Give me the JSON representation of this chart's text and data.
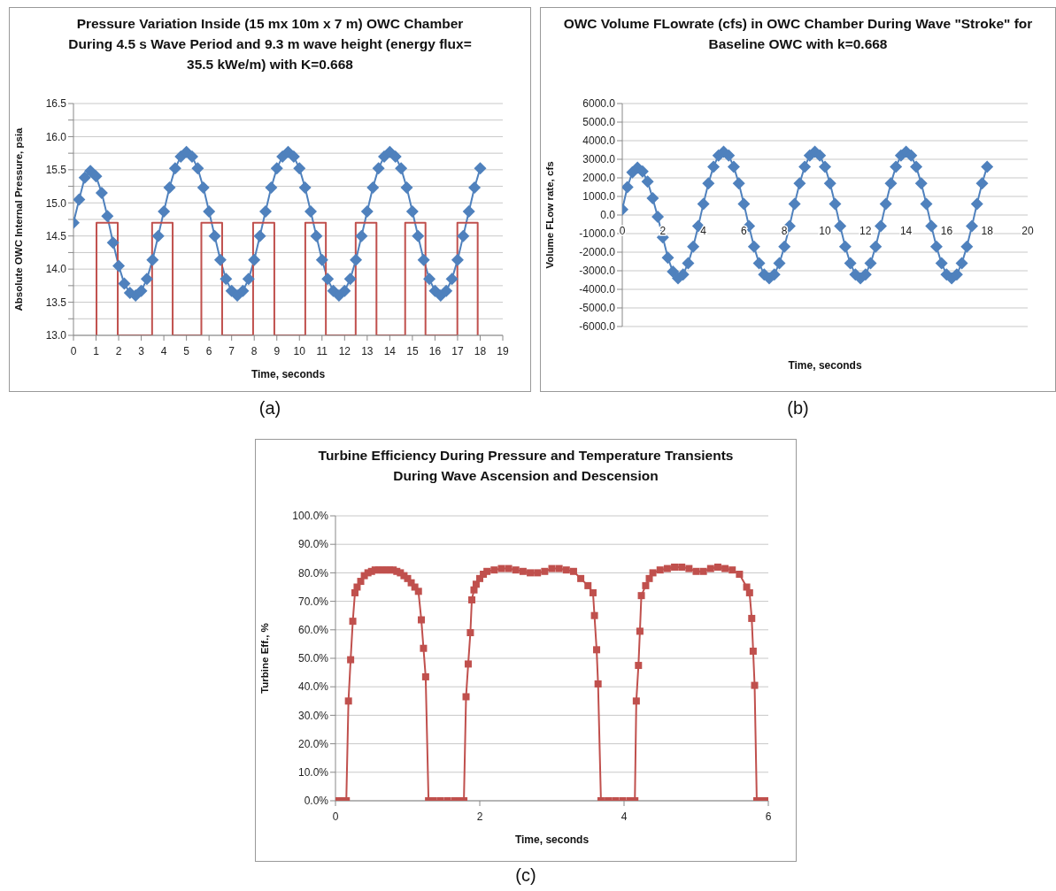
{
  "chart_data": [
    {
      "type": "line",
      "title": "Pressure Variation Inside (15 mx 10m x 7 m) OWC Chamber During 4.5 s Wave Period and 9.3 m wave height (energy flux= 35.5 kWe/m) with K=0.668",
      "xlabel": "Time, seconds",
      "ylabel": "Absolute OWC Internal Pressure, psia",
      "annotations": [
        "(a)"
      ],
      "marker": "diamond",
      "grid": "y",
      "xlim": [
        0,
        19
      ],
      "xticks": [
        0,
        1,
        2,
        3,
        4,
        5,
        6,
        7,
        8,
        9,
        10,
        11,
        12,
        13,
        14,
        15,
        16,
        17,
        18,
        19
      ],
      "ylim": [
        13,
        16.5
      ],
      "yticks": [
        {
          "value": 13,
          "label": "13.0"
        },
        {
          "value": 13.25,
          "label": null
        },
        {
          "value": 13.5,
          "label": "13.5"
        },
        {
          "value": 13.75,
          "label": null
        },
        {
          "value": 14,
          "label": "14.0"
        },
        {
          "value": 14.25,
          "label": null
        },
        {
          "value": 14.5,
          "label": "14.5"
        },
        {
          "value": 14.75,
          "label": null
        },
        {
          "value": 15,
          "label": "15.0"
        },
        {
          "value": 15.25,
          "label": null
        },
        {
          "value": 15.5,
          "label": "15.5"
        },
        {
          "value": 15.75,
          "label": null
        },
        {
          "value": 16,
          "label": "16.0"
        },
        {
          "value": 16.25,
          "label": null
        },
        {
          "value": 16.5,
          "label": "16.5"
        }
      ],
      "x": [
        0,
        0.25,
        0.5,
        0.75,
        1,
        1.25,
        1.5,
        1.75,
        2,
        2.25,
        2.5,
        2.75,
        3,
        3.25,
        3.5,
        3.75,
        4,
        4.25,
        4.5,
        4.75,
        5,
        5.25,
        5.5,
        5.75,
        6,
        6.25,
        6.5,
        6.75,
        7,
        7.25,
        7.5,
        7.75,
        8,
        8.25,
        8.5,
        8.75,
        9,
        9.25,
        9.5,
        9.75,
        10,
        10.25,
        10.5,
        10.75,
        11,
        11.25,
        11.5,
        11.75,
        12,
        12.25,
        12.5,
        12.75,
        13,
        13.25,
        13.5,
        13.75,
        14,
        14.25,
        14.5,
        14.75,
        15,
        15.25,
        15.5,
        15.75,
        16,
        16.25,
        16.5,
        16.75,
        17,
        17.25,
        17.5,
        17.75,
        18
      ],
      "series": [
        {
          "color": "#4f81bd",
          "values": [
            14.7,
            15.05,
            15.38,
            15.48,
            15.4,
            15.15,
            14.8,
            14.4,
            14.05,
            13.78,
            13.64,
            13.6,
            13.67,
            13.85,
            14.14,
            14.5,
            14.87,
            15.23,
            15.52,
            15.7,
            15.77,
            15.7,
            15.52,
            15.23,
            14.87,
            14.5,
            14.14,
            13.85,
            13.67,
            13.6,
            13.67,
            13.85,
            14.14,
            14.5,
            14.87,
            15.23,
            15.52,
            15.7,
            15.77,
            15.7,
            15.52,
            15.23,
            14.87,
            14.5,
            14.14,
            13.85,
            13.67,
            13.6,
            13.67,
            13.85,
            14.14,
            14.5,
            14.87,
            15.23,
            15.52,
            15.7,
            15.77,
            15.7,
            15.52,
            15.23,
            14.87,
            14.5,
            14.14,
            13.85,
            13.67,
            13.6,
            13.67,
            13.85,
            14.14,
            14.5,
            14.87,
            15.23,
            15.52
          ]
        },
        {
          "type": "line",
          "color": "#c0504d",
          "marker": "none",
          "x": [
            1.02,
            1.02,
            1.96,
            1.96,
            3.48,
            3.48,
            4.39,
            4.39,
            5.66,
            5.66,
            6.58,
            6.58,
            7.95,
            7.95,
            8.89,
            8.89,
            10.26,
            10.26,
            11.17,
            11.17,
            12.49,
            12.49,
            13.41,
            13.41,
            14.68,
            14.68,
            15.58,
            15.58,
            16.99,
            16.99,
            17.89,
            17.89
          ],
          "values": [
            13,
            14.7,
            14.7,
            13,
            13,
            14.7,
            14.7,
            13,
            13,
            14.7,
            14.7,
            13,
            13,
            14.7,
            14.7,
            13,
            13,
            14.7,
            14.7,
            13,
            13,
            14.7,
            14.7,
            13,
            13,
            14.7,
            14.7,
            13,
            13,
            14.7,
            14.7,
            13
          ]
        }
      ]
    },
    {
      "type": "line",
      "title": "OWC Volume FLowrate (cfs) in OWC Chamber During Wave \"Stroke\" for Baseline OWC with k=0.668",
      "xlabel": "Time, seconds",
      "ylabel": "Volume FLow rate, cfs",
      "annotations": [
        "(b)"
      ],
      "marker": "diamond",
      "grid": "y",
      "xlim": [
        0,
        20
      ],
      "xticks": [
        0,
        2,
        4,
        6,
        8,
        10,
        12,
        14,
        16,
        18,
        20
      ],
      "ylim": [
        -6000,
        6000
      ],
      "yticks": [
        {
          "value": -6000,
          "label": "-6000.0"
        },
        {
          "value": -5000,
          "label": "-5000.0"
        },
        {
          "value": -4000,
          "label": "-4000.0"
        },
        {
          "value": -3000,
          "label": "-3000.0"
        },
        {
          "value": -2000,
          "label": "-2000.0"
        },
        {
          "value": -1000,
          "label": "-1000.0"
        },
        {
          "value": 0,
          "label": "0.0"
        },
        {
          "value": 1000,
          "label": "1000.0"
        },
        {
          "value": 2000,
          "label": "2000.0"
        },
        {
          "value": 3000,
          "label": "3000.0"
        },
        {
          "value": 4000,
          "label": "4000.0"
        },
        {
          "value": 5000,
          "label": "5000.0"
        },
        {
          "value": 6000,
          "label": "6000.0"
        }
      ],
      "x": [
        0,
        0.25,
        0.5,
        0.75,
        1,
        1.25,
        1.5,
        1.75,
        2,
        2.25,
        2.5,
        2.75,
        3,
        3.25,
        3.5,
        3.75,
        4,
        4.25,
        4.5,
        4.75,
        5,
        5.25,
        5.5,
        5.75,
        6,
        6.25,
        6.5,
        6.75,
        7,
        7.25,
        7.5,
        7.75,
        8,
        8.25,
        8.5,
        8.75,
        9,
        9.25,
        9.5,
        9.75,
        10,
        10.25,
        10.5,
        10.75,
        11,
        11.25,
        11.5,
        11.75,
        12,
        12.25,
        12.5,
        12.75,
        13,
        13.25,
        13.5,
        13.75,
        14,
        14.25,
        14.5,
        14.75,
        15,
        15.25,
        15.5,
        15.75,
        16,
        16.25,
        16.5,
        16.75,
        17,
        17.25,
        17.5,
        17.75,
        18
      ],
      "series": [
        {
          "color": "#4f81bd",
          "values": [
            300,
            1500,
            2300,
            2550,
            2350,
            1800,
            900,
            -100,
            -1200,
            -2300,
            -3050,
            -3400,
            -3200,
            -2600,
            -1700,
            -600,
            600,
            1700,
            2600,
            3200,
            3400,
            3200,
            2600,
            1700,
            600,
            -600,
            -1700,
            -2600,
            -3200,
            -3400,
            -3200,
            -2600,
            -1700,
            -600,
            600,
            1700,
            2600,
            3200,
            3400,
            3200,
            2600,
            1700,
            600,
            -600,
            -1700,
            -2600,
            -3200,
            -3400,
            -3200,
            -2600,
            -1700,
            -600,
            600,
            1700,
            2600,
            3200,
            3400,
            3200,
            2600,
            1700,
            600,
            -600,
            -1700,
            -2600,
            -3200,
            -3400,
            -3200,
            -2600,
            -1700,
            -600,
            600,
            1700,
            2600
          ]
        }
      ]
    },
    {
      "type": "line",
      "title": "Turbine Efficiency During Pressure and Temperature Transients During Wave Ascension and Descension",
      "xlabel": "Time, seconds",
      "ylabel": "Turbine Eff., %",
      "annotations": [
        "(c)"
      ],
      "marker": "square",
      "grid": "y",
      "xlim": [
        0,
        6
      ],
      "xticks": [
        0,
        2,
        4,
        6
      ],
      "ylim": [
        0,
        100
      ],
      "yticks": [
        {
          "value": 0,
          "label": "0.0%"
        },
        {
          "value": 10,
          "label": "10.0%"
        },
        {
          "value": 20,
          "label": "20.0%"
        },
        {
          "value": 30,
          "label": "30.0%"
        },
        {
          "value": 40,
          "label": "40.0%"
        },
        {
          "value": 50,
          "label": "50.0%"
        },
        {
          "value": 60,
          "label": "60.0%"
        },
        {
          "value": 70,
          "label": "70.0%"
        },
        {
          "value": 80,
          "label": "80.0%"
        },
        {
          "value": 90,
          "label": "90.0%"
        },
        {
          "value": 100,
          "label": "100.0%"
        }
      ],
      "x": [
        0,
        0.05,
        0.1,
        0.15,
        0.18,
        0.21,
        0.24,
        0.27,
        0.3,
        0.35,
        0.4,
        0.45,
        0.5,
        0.55,
        0.6,
        0.65,
        0.7,
        0.75,
        0.8,
        0.85,
        0.9,
        0.95,
        1.0,
        1.05,
        1.1,
        1.15,
        1.19,
        1.22,
        1.25,
        1.29,
        1.35,
        1.45,
        1.55,
        1.65,
        1.72,
        1.78,
        1.81,
        1.84,
        1.87,
        1.89,
        1.92,
        1.95,
        2.0,
        2.05,
        2.1,
        2.2,
        2.3,
        2.4,
        2.5,
        2.6,
        2.7,
        2.8,
        2.9,
        3.0,
        3.1,
        3.2,
        3.3,
        3.4,
        3.5,
        3.57,
        3.59,
        3.62,
        3.64,
        3.68,
        3.78,
        3.88,
        3.98,
        4.08,
        4.15,
        4.17,
        4.2,
        4.22,
        4.24,
        4.3,
        4.35,
        4.4,
        4.5,
        4.6,
        4.7,
        4.8,
        4.9,
        5.0,
        5.1,
        5.2,
        5.3,
        5.4,
        5.5,
        5.6,
        5.7,
        5.74,
        5.77,
        5.79,
        5.81,
        5.84,
        5.9,
        5.95,
        6.0
      ],
      "series": [
        {
          "color": "#c0504d",
          "values": [
            0,
            0,
            0,
            0,
            35,
            49.5,
            63,
            73,
            75,
            77,
            79,
            80,
            80.5,
            81,
            81,
            81,
            81,
            81,
            81,
            80.5,
            80,
            79,
            78,
            76.5,
            75,
            73.5,
            63.5,
            53.5,
            43.5,
            0,
            0,
            0,
            0,
            0,
            0,
            0,
            36.5,
            48,
            59,
            70.5,
            74,
            76,
            78,
            79.5,
            80.5,
            81,
            81.5,
            81.5,
            81,
            80.5,
            80,
            80,
            80.5,
            81.5,
            81.5,
            81,
            80.5,
            78,
            75.5,
            73,
            65,
            53,
            41,
            0,
            0,
            0,
            0,
            0,
            0,
            35,
            47.5,
            59.5,
            72,
            75.5,
            78,
            80,
            81,
            81.5,
            82,
            82,
            81.5,
            80.5,
            80.5,
            81.5,
            82,
            81.5,
            81,
            79.5,
            75,
            73,
            64,
            52.5,
            40.5,
            0,
            0,
            0,
            0
          ]
        }
      ]
    }
  ]
}
